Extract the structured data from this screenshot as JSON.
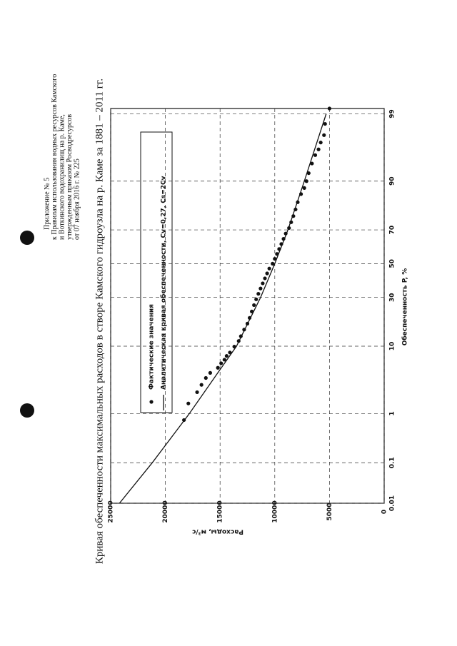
{
  "header": {
    "lines": [
      "Приложение № 5",
      "к Правилам использования водных ресурсов Камского",
      "и Воткинского водохранилищ на р. Каме,",
      "утвержденным приказом Росводресурсов",
      "от 07 ноября 2016 г. № 225"
    ]
  },
  "chart_data": {
    "type": "line",
    "title": "Кривая обеспеченности максимальных расходов в створе Камского гидроузла на р. Каме за 1881 – 2011 гг.",
    "x_label": "Обеспеченность P, %",
    "y_label": "Расходы, м³/с",
    "x_scale": "probability",
    "xlim": [
      0.01,
      99.2
    ],
    "xticks": [
      0.01,
      0.1,
      1,
      10,
      30,
      50,
      70,
      90,
      99
    ],
    "ylim": [
      0,
      25000
    ],
    "yticks": [
      0,
      5000,
      10000,
      15000,
      20000,
      25000
    ],
    "grid": true,
    "series": [
      {
        "name": "Фактические значения",
        "type": "scatter",
        "color": "#111111",
        "x": [
          0.76,
          1.5,
          2.3,
          3.0,
          3.8,
          4.5,
          5.3,
          6.1,
          6.8,
          7.6,
          8.4,
          9.9,
          11.5,
          13,
          15.3,
          17.6,
          20,
          22.9,
          26,
          29,
          32,
          35,
          38,
          41,
          44,
          47,
          50,
          53,
          56,
          59,
          62,
          65,
          68,
          71,
          74,
          77,
          80,
          83,
          86,
          88,
          90,
          92,
          94,
          95.4,
          96.2,
          97,
          97.7,
          98.5,
          99.2
        ],
        "values": [
          18300,
          17900,
          17100,
          16700,
          16300,
          15900,
          15200,
          14900,
          14600,
          14400,
          14100,
          13700,
          13300,
          13100,
          12800,
          12500,
          12300,
          12100,
          11900,
          11700,
          11500,
          11300,
          11100,
          10900,
          10700,
          10500,
          10200,
          10000,
          9800,
          9600,
          9400,
          9200,
          9000,
          8700,
          8500,
          8300,
          8100,
          7900,
          7600,
          7300,
          7100,
          6900,
          6600,
          6300,
          6000,
          5800,
          5500,
          5400,
          5000
        ]
      },
      {
        "name": "Аналитическая кривая обеспеченности, Cv=0,27, Cs=2Cv",
        "type": "line",
        "color": "#111111",
        "x": [
          0.01,
          0.1,
          1,
          5,
          10,
          30,
          50,
          70,
          90,
          99
        ],
        "values": [
          24200,
          21200,
          17800,
          15000,
          13500,
          11300,
          10000,
          8800,
          7300,
          5300
        ]
      }
    ]
  }
}
